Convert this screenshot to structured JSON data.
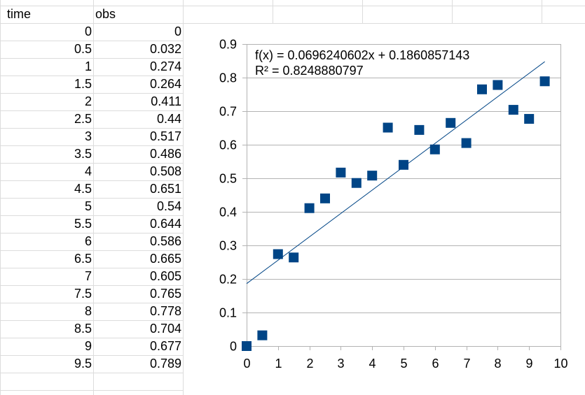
{
  "spreadsheet": {
    "headers": [
      "time",
      "obs"
    ],
    "rows": [
      [
        "0",
        "0"
      ],
      [
        "0.5",
        "0.032"
      ],
      [
        "1",
        "0.274"
      ],
      [
        "1.5",
        "0.264"
      ],
      [
        "2",
        "0.411"
      ],
      [
        "2.5",
        "0.44"
      ],
      [
        "3",
        "0.517"
      ],
      [
        "3.5",
        "0.486"
      ],
      [
        "4",
        "0.508"
      ],
      [
        "4.5",
        "0.651"
      ],
      [
        "5",
        "0.54"
      ],
      [
        "5.5",
        "0.644"
      ],
      [
        "6",
        "0.586"
      ],
      [
        "6.5",
        "0.665"
      ],
      [
        "7",
        "0.605"
      ],
      [
        "7.5",
        "0.765"
      ],
      [
        "8",
        "0.778"
      ],
      [
        "8.5",
        "0.704"
      ],
      [
        "9",
        "0.677"
      ],
      [
        "9.5",
        "0.789"
      ]
    ]
  },
  "chart_data": {
    "type": "scatter",
    "x": [
      0,
      0.5,
      1,
      1.5,
      2,
      2.5,
      3,
      3.5,
      4,
      4.5,
      5,
      5.5,
      6,
      6.5,
      7,
      7.5,
      8,
      8.5,
      9,
      9.5
    ],
    "y": [
      0,
      0.032,
      0.274,
      0.264,
      0.411,
      0.44,
      0.517,
      0.486,
      0.508,
      0.651,
      0.54,
      0.644,
      0.586,
      0.665,
      0.605,
      0.765,
      0.778,
      0.704,
      0.677,
      0.789
    ],
    "xlim": [
      0,
      10
    ],
    "ylim": [
      0,
      0.9
    ],
    "xticks": [
      "0",
      "1",
      "2",
      "3",
      "4",
      "5",
      "6",
      "7",
      "8",
      "9",
      "10"
    ],
    "yticks": [
      "0",
      "0.1",
      "0.2",
      "0.3",
      "0.4",
      "0.5",
      "0.6",
      "0.7",
      "0.8",
      "0.9"
    ],
    "grid": "horizontal",
    "marker": "square",
    "marker_color": "#004586",
    "trendline": {
      "slope": 0.0696240602,
      "intercept": 0.1860857143,
      "color": "#004586",
      "equation_text": "f(x) = 0.0696240602x + 0.1860857143",
      "r2_text": "R² = 0.8248880797"
    }
  }
}
